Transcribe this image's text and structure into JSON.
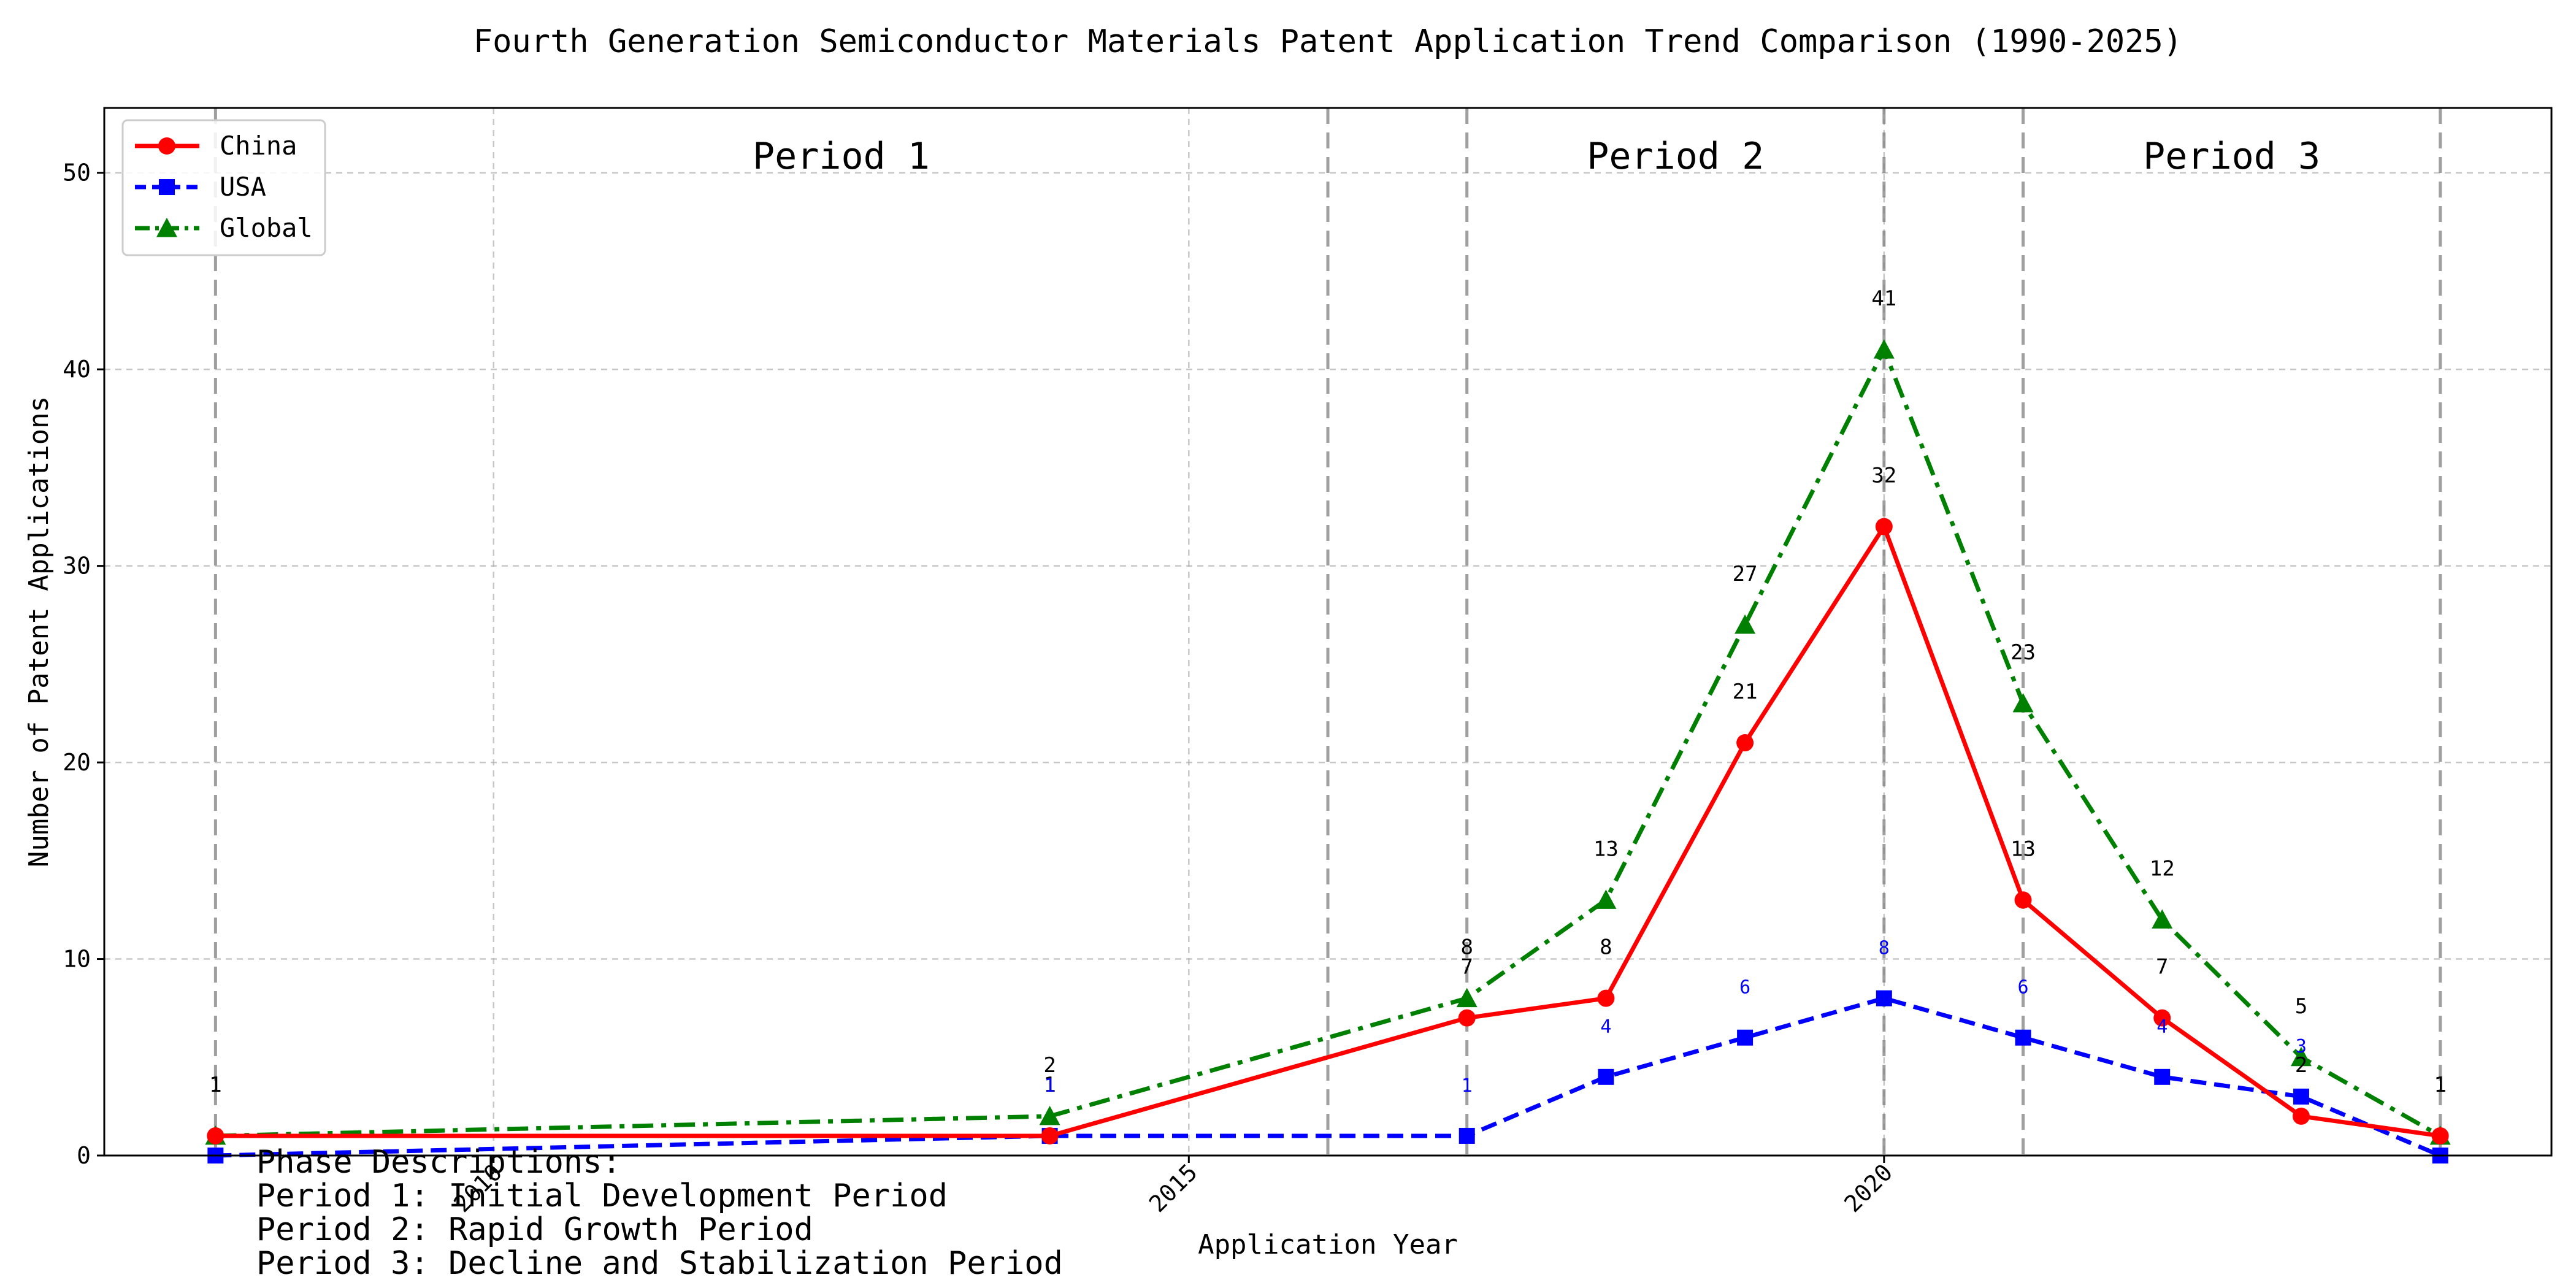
{
  "chart_data": {
    "type": "line",
    "title": "Fourth Generation Semiconductor Materials Patent Application Trend Comparison (1990-2025)",
    "xlabel": "Application Year",
    "ylabel": "Number of Patent Applications",
    "xlim": [
      2007.2,
      2024.8
    ],
    "ylim": [
      0,
      53.3
    ],
    "xticks": [
      2010,
      2015,
      2020
    ],
    "yticks": [
      0,
      10,
      20,
      30,
      40,
      50
    ],
    "grid": true,
    "legend_position": "top-left",
    "series": [
      {
        "name": "China",
        "color": "#ff0000",
        "marker": "circle",
        "dash": "solid",
        "points": [
          [
            2008,
            1
          ],
          [
            2014,
            1
          ],
          [
            2017,
            7
          ],
          [
            2018,
            8
          ],
          [
            2019,
            21
          ],
          [
            2020,
            32
          ],
          [
            2021,
            13
          ],
          [
            2022,
            7
          ],
          [
            2023,
            2
          ],
          [
            2024,
            1
          ]
        ],
        "labels": [
          "1",
          "1",
          "7",
          "8",
          "21",
          "32",
          "13",
          "7",
          "2",
          "1"
        ]
      },
      {
        "name": "USA",
        "color": "#0000ff",
        "marker": "square",
        "dash": "dashed",
        "points": [
          [
            2008,
            0
          ],
          [
            2014,
            1
          ],
          [
            2017,
            1
          ],
          [
            2018,
            4
          ],
          [
            2019,
            6
          ],
          [
            2020,
            8
          ],
          [
            2021,
            6
          ],
          [
            2022,
            4
          ],
          [
            2023,
            3
          ],
          [
            2024,
            0
          ]
        ],
        "labels": [
          "",
          "1",
          "1",
          "4",
          "6",
          "8",
          "6",
          "4",
          "3",
          ""
        ]
      },
      {
        "name": "Global",
        "color": "#008000",
        "marker": "triangle",
        "dash": "dashdot",
        "points": [
          [
            2008,
            1
          ],
          [
            2014,
            2
          ],
          [
            2017,
            8
          ],
          [
            2018,
            13
          ],
          [
            2019,
            27
          ],
          [
            2020,
            41
          ],
          [
            2021,
            23
          ],
          [
            2022,
            12
          ],
          [
            2023,
            5
          ],
          [
            2024,
            1
          ]
        ],
        "labels": [
          "1",
          "2",
          "8",
          "13",
          "27",
          "41",
          "23",
          "12",
          "5",
          "1"
        ]
      }
    ],
    "period_lines": [
      2008,
      2016,
      2017,
      2020,
      2021,
      2024
    ],
    "periods": [
      {
        "label": "Period 1",
        "x": 2012.5
      },
      {
        "label": "Period 2",
        "x": 2018.5
      },
      {
        "label": "Period 3",
        "x": 2022.5
      }
    ],
    "notes": [
      "Phase Descriptions:",
      "Period 1: Initial Development Period",
      "Period 2: Rapid Growth Period",
      "Period 3: Decline and Stabilization Period"
    ]
  }
}
